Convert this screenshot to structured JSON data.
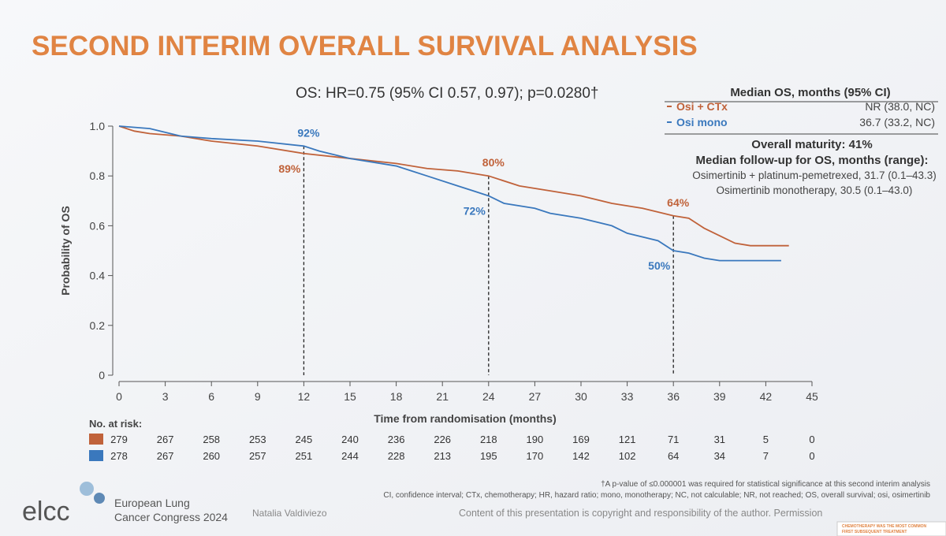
{
  "chart_data": {
    "type": "km",
    "title": "SECOND INTERIM OVERALL SURVIVAL ANALYSIS",
    "subtitle": "OS: HR=0.75 (95% CI 0.57, 0.97); p=0.0280†",
    "x_label": "Time from randomisation (months)",
    "y_label": "Probability of OS",
    "xlim": [
      0,
      45
    ],
    "xticks": [
      0,
      3,
      6,
      9,
      12,
      15,
      18,
      21,
      24,
      27,
      30,
      33,
      36,
      39,
      42,
      45
    ],
    "ylim": [
      0,
      1
    ],
    "yticks": [
      0,
      0.2,
      0.4,
      0.6,
      0.8,
      {
        "value": 1,
        "label": "1.0"
      }
    ],
    "legend_title": "Median OS, months (95% CI)",
    "series": [
      {
        "name": "Osi + CTx",
        "color": "#c0623a",
        "median": "NR (38.0, NC)",
        "x": [
          0,
          1,
          2,
          4,
          6,
          9,
          12,
          15,
          18,
          20,
          22,
          24,
          26,
          28,
          30,
          32,
          34,
          36,
          37,
          38,
          39,
          40,
          41,
          43.5
        ],
        "values": [
          1.0,
          0.98,
          0.97,
          0.96,
          0.94,
          0.92,
          0.89,
          0.87,
          0.85,
          0.83,
          0.82,
          0.8,
          0.76,
          0.74,
          0.72,
          0.69,
          0.67,
          0.64,
          0.63,
          0.59,
          0.56,
          0.53,
          0.52,
          0.52
        ]
      },
      {
        "name": "Osi mono",
        "color": "#3a78bd",
        "median": "36.7 (33.2, NC)",
        "x": [
          0,
          2,
          4,
          6,
          9,
          12,
          13,
          15,
          18,
          19,
          20,
          22,
          23,
          24,
          25,
          27,
          28,
          30,
          32,
          33,
          35,
          36,
          37,
          38,
          39,
          43
        ],
        "values": [
          1.0,
          0.99,
          0.96,
          0.95,
          0.94,
          0.92,
          0.9,
          0.87,
          0.84,
          0.82,
          0.8,
          0.76,
          0.74,
          0.72,
          0.69,
          0.67,
          0.65,
          0.63,
          0.6,
          0.57,
          0.54,
          0.5,
          0.49,
          0.47,
          0.46,
          0.46
        ]
      }
    ],
    "annotations": [
      {
        "x": 12,
        "value": 0.92,
        "label": "92%",
        "series": 1
      },
      {
        "x": 12,
        "value": 0.89,
        "label": "89%",
        "series": 0
      },
      {
        "x": 24,
        "value": 0.8,
        "label": "80%",
        "series": 0
      },
      {
        "x": 24,
        "value": 0.72,
        "label": "72%",
        "series": 1
      },
      {
        "x": 36,
        "value": 0.64,
        "label": "64%",
        "series": 0
      },
      {
        "x": 36,
        "value": 0.5,
        "label": "50%",
        "series": 1
      }
    ],
    "risk_table": {
      "label": "No. at risk:",
      "rows": [
        [
          279,
          267,
          258,
          253,
          245,
          240,
          236,
          226,
          218,
          190,
          169,
          121,
          71,
          31,
          5,
          0
        ],
        [
          278,
          267,
          260,
          257,
          251,
          244,
          228,
          213,
          195,
          170,
          142,
          102,
          64,
          34,
          7,
          0
        ]
      ]
    }
  },
  "info": {
    "maturity": "Overall maturity: 41%",
    "followup_title": "Median follow-up for OS, months (range):",
    "followup_lines": [
      "Osimertinib + platinum-pemetrexed, 31.7 (0.1–43.3)",
      "Osimertinib monotherapy, 30.5 (0.1–43.0)"
    ]
  },
  "footer": {
    "footnotes": [
      "†A p-value of ≤0.000001 was required for statistical significance at this second interim analysis",
      "CI, confidence interval; CTx, chemotherapy; HR, hazard ratio; mono, monotherapy; NC, not calculable; NR, not reached; OS, overall survival; osi, osimertinib"
    ],
    "logo": "elcc",
    "congress": [
      "European Lung",
      "Cancer Congress 2024"
    ],
    "speaker": "Natalia Valdiviezo",
    "copyright": "Content of this presentation is copyright and responsibility of the author. Permission",
    "thumbnail": [
      "CHEMOTHERAPY WAS THE MOST COMMON",
      "FIRST SUBSEQUENT TREATMENT"
    ]
  }
}
